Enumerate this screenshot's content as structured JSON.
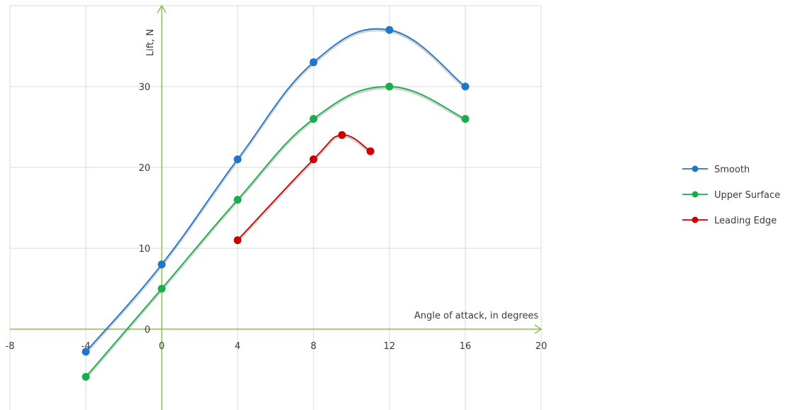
{
  "chart_data": {
    "type": "line",
    "title": "",
    "xlabel": "Angle of attack, in degrees",
    "ylabel": "Lift, N",
    "xlim": [
      -8,
      20
    ],
    "ylim": [
      -10,
      40
    ],
    "x_ticks": [
      "-8",
      "-4",
      "0",
      "4",
      "8",
      "12",
      "16",
      "20"
    ],
    "y_ticks": [
      "0",
      "10",
      "20",
      "30"
    ],
    "grid": true,
    "legend_position": "right",
    "axis_color": "#8bc34a",
    "grid_color": "#d9d9d9",
    "series": [
      {
        "name": "Smooth",
        "color": "#1f77c9",
        "points": [
          [
            -4,
            -2.8
          ],
          [
            0,
            8
          ],
          [
            4,
            21
          ],
          [
            8,
            33
          ],
          [
            12,
            37
          ],
          [
            16,
            30
          ]
        ]
      },
      {
        "name": "Upper Surface",
        "color": "#1aad4b",
        "points": [
          [
            -4,
            -5.9
          ],
          [
            0,
            5
          ],
          [
            4,
            16
          ],
          [
            8,
            26
          ],
          [
            12,
            30
          ],
          [
            16,
            26
          ]
        ]
      },
      {
        "name": "Leading Edge",
        "color": "#cc0000",
        "points": [
          [
            4,
            11
          ],
          [
            8,
            21
          ],
          [
            9.5,
            24
          ],
          [
            11,
            22
          ]
        ]
      }
    ]
  }
}
